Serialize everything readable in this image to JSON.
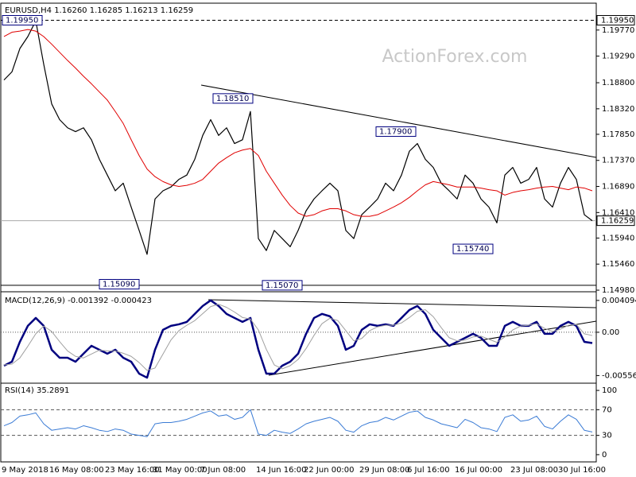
{
  "chart_data": [
    {
      "type": "line",
      "title": "EURUSD,H4 1.16260 1.16285 1.16213 1.16259",
      "watermark": "ActionForex.com",
      "categories": [
        "9 May 2018",
        null,
        null,
        null,
        null,
        null,
        "16 May 08:00",
        null,
        null,
        null,
        null,
        null,
        null,
        "23 May 16:00",
        null,
        null,
        null,
        null,
        null,
        "31 May 00:00",
        null,
        null,
        null,
        null,
        null,
        "7 Jun 08:00",
        null,
        null,
        null,
        null,
        null,
        null,
        "14 Jun 16:00",
        null,
        null,
        null,
        null,
        null,
        "22 Jun 00:00",
        null,
        null,
        null,
        null,
        null,
        null,
        "29 Jun 08:00",
        null,
        null,
        null,
        null,
        null,
        "6 Jul 16:00",
        null,
        null,
        null,
        null,
        null,
        "16 Jul 00:00",
        null,
        null,
        null,
        null,
        null,
        null,
        "23 Jul 08:00",
        null,
        null,
        null,
        null,
        null,
        "30 Jul 16:00",
        null,
        null,
        null,
        null
      ],
      "series": [
        {
          "color": "#000000",
          "width": 1.2,
          "values": [
            1.1885,
            1.19,
            1.1943,
            1.1965,
            1.1994,
            1.1914,
            1.1841,
            1.1812,
            1.1797,
            1.179,
            1.1797,
            1.1775,
            1.1739,
            1.171,
            1.1681,
            1.1695,
            1.1651,
            1.1608,
            1.1564,
            1.1666,
            1.1681,
            1.1688,
            1.1702,
            1.171,
            1.1739,
            1.1783,
            1.1812,
            1.1783,
            1.1797,
            1.1768,
            1.1775,
            1.1827,
            1.1593,
            1.1571,
            1.1608,
            1.1593,
            1.1578,
            1.1608,
            1.1644,
            1.1666,
            1.1681,
            1.1695,
            1.1681,
            1.1608,
            1.1593,
            1.1637,
            1.1651,
            1.1666,
            1.1695,
            1.1681,
            1.171,
            1.1754,
            1.1768,
            1.1739,
            1.1724,
            1.1695,
            1.1681,
            1.1666,
            1.171,
            1.1695,
            1.1666,
            1.1651,
            1.1622,
            1.171,
            1.1724,
            1.1695,
            1.1702,
            1.1724,
            1.1666,
            1.1651,
            1.1695,
            1.1724,
            1.1702,
            1.1637,
            1.16259
          ]
        },
        {
          "color": "#e00000",
          "width": 1,
          "values": [
            1.1965,
            1.1973,
            1.1975,
            1.1978,
            1.1975,
            1.1965,
            1.1951,
            1.1936,
            1.1921,
            1.1907,
            1.1892,
            1.1878,
            1.1863,
            1.1848,
            1.1827,
            1.1805,
            1.1775,
            1.1746,
            1.1721,
            1.1707,
            1.1698,
            1.1692,
            1.1689,
            1.1691,
            1.1695,
            1.1702,
            1.1717,
            1.1732,
            1.1742,
            1.1751,
            1.1756,
            1.1759,
            1.1746,
            1.1717,
            1.1695,
            1.1673,
            1.1654,
            1.164,
            1.1634,
            1.1637,
            1.1644,
            1.1648,
            1.1648,
            1.1644,
            1.1637,
            1.1634,
            1.1634,
            1.1637,
            1.1644,
            1.1651,
            1.1659,
            1.1669,
            1.1681,
            1.1692,
            1.1698,
            1.1695,
            1.1692,
            1.1688,
            1.1688,
            1.1688,
            1.1686,
            1.1683,
            1.1681,
            1.1673,
            1.1678,
            1.1681,
            1.1683,
            1.1686,
            1.1688,
            1.1689,
            1.1686,
            1.1683,
            1.1688,
            1.1686,
            1.1681
          ]
        }
      ],
      "ylim": [
        1.1498,
        1.2025
      ],
      "yticks": [
        {
          "value": 1.1977,
          "label": "1.19770"
        },
        {
          "value": 1.1929,
          "label": "1.19290"
        },
        {
          "value": 1.188,
          "label": "1.18800"
        },
        {
          "value": 1.1832,
          "label": "1.18320"
        },
        {
          "value": 1.1785,
          "label": "1.17850"
        },
        {
          "value": 1.1737,
          "label": "1.17370"
        },
        {
          "value": 1.1689,
          "label": "1.16890"
        },
        {
          "value": 1.1641,
          "label": "1.16410"
        },
        {
          "value": 1.1594,
          "label": "1.15940"
        },
        {
          "value": 1.1546,
          "label": "1.15460"
        },
        {
          "value": 1.1498,
          "label": "1.14980"
        }
      ],
      "levels": [
        {
          "value": 1.1995,
          "style": "dashed",
          "color": "#000000"
        },
        {
          "value": 1.1507,
          "style": "solid",
          "color": "#000000"
        },
        {
          "value": 1.16259,
          "style": "solid",
          "color": "#aaaaaa"
        }
      ],
      "price_labels": [
        {
          "value": 1.1995,
          "label": "1.19950"
        },
        {
          "value": 1.16259,
          "label": "1.16259"
        }
      ],
      "annotations": [
        {
          "value": 1.1995,
          "label": "1.19950"
        },
        {
          "value": 1.1851,
          "label": "1.18510"
        },
        {
          "value": 1.179,
          "label": "1.17900"
        },
        {
          "value": 1.1574,
          "label": "1.15740"
        },
        {
          "value": 1.1509,
          "label": "1.15090"
        },
        {
          "value": 1.1507,
          "label": "1.15070"
        }
      ]
    },
    {
      "type": "line",
      "title": "MACD(12,26,9) -0.001392 -0.000423",
      "series": [
        {
          "color": "#000080",
          "width": 2.5,
          "values": [
            -0.0043,
            -0.00379,
            -0.00123,
            0.00082,
            0.00184,
            0.00082,
            -0.00225,
            -0.00328,
            -0.00328,
            -0.00379,
            -0.00276,
            -0.00174,
            -0.00225,
            -0.00276,
            -0.00225,
            -0.00328,
            -0.00379,
            -0.00532,
            -0.00584,
            -0.00225,
            0.00031,
            0.00082,
            0.00102,
            0.00133,
            0.00236,
            0.00338,
            0.0041,
            0.00338,
            0.00236,
            0.00184,
            0.00133,
            0.00184,
            -0.00225,
            -0.00532,
            -0.00532,
            -0.0043,
            -0.00379,
            -0.00276,
            -0.0002,
            0.00184,
            0.00236,
            0.00205,
            0.00082,
            -0.00225,
            -0.00174,
            0.00031,
            0.00102,
            0.00082,
            0.00102,
            0.00082,
            0.00184,
            0.00287,
            0.00338,
            0.00236,
            0.00031,
            -0.00072,
            -0.00174,
            -0.00123,
            -0.00072,
            -0.0002,
            -0.00072,
            -0.00174,
            -0.00174,
            0.00082,
            0.00133,
            0.00082,
            0.00082,
            0.00133,
            -0.0002,
            -0.0002,
            0.00082,
            0.00133,
            0.00082,
            -0.00123,
            -0.001392
          ]
        },
        {
          "color": "#a0a0a0",
          "width": 1,
          "values": [
            -0.0042,
            -0.0041,
            -0.0033,
            -0.0018,
            -0.0002,
            0.0008,
            0.0001,
            -0.0012,
            -0.0024,
            -0.0031,
            -0.0033,
            -0.0028,
            -0.0023,
            -0.0024,
            -0.0024,
            -0.0027,
            -0.0031,
            -0.0039,
            -0.0049,
            -0.0046,
            -0.0028,
            -0.001,
            0.0002,
            0.0009,
            0.0015,
            0.0024,
            0.0033,
            0.0036,
            0.0032,
            0.0026,
            0.0019,
            0.0017,
            0.0003,
            -0.0022,
            -0.0042,
            -0.0047,
            -0.0043,
            -0.0035,
            -0.0021,
            -0.0004,
            0.0011,
            0.0018,
            0.0015,
            0.0002,
            -0.0011,
            -0.0008,
            0.0002,
            0.0007,
            0.0009,
            0.0009,
            0.0012,
            0.0019,
            0.0027,
            0.0029,
            0.002,
            0.0006,
            -0.0007,
            -0.0011,
            -0.001,
            -0.0006,
            -0.0005,
            -0.0009,
            -0.0013,
            -0.0006,
            0.0003,
            0.0008,
            0.0009,
            0.0011,
            0.0005,
            0.0001,
            0.0004,
            0.0009,
            0.001,
            -0.0002,
            -0.000423
          ]
        }
      ],
      "ylim": [
        -0.00655,
        0.0049
      ],
      "yticks": [
        0.004094,
        {
          "value": 0,
          "label": "0.00"
        },
        -0.005568
      ],
      "hlines": [
        0
      ],
      "hline_style": "dotted"
    },
    {
      "type": "line",
      "title": "RSI(14) 35.2891",
      "series": [
        {
          "color": "#3a7bd5",
          "width": 1,
          "values": [
            45,
            50,
            60,
            62,
            65,
            48,
            38,
            40,
            42,
            40,
            45,
            42,
            38,
            36,
            40,
            38,
            32,
            30,
            28,
            48,
            50,
            50,
            52,
            55,
            60,
            65,
            68,
            60,
            62,
            55,
            58,
            70,
            32,
            30,
            38,
            35,
            33,
            40,
            48,
            52,
            55,
            58,
            52,
            38,
            35,
            45,
            50,
            52,
            58,
            54,
            60,
            66,
            68,
            58,
            54,
            48,
            45,
            42,
            55,
            50,
            42,
            40,
            36,
            58,
            62,
            52,
            54,
            60,
            44,
            40,
            52,
            62,
            55,
            38,
            35.2891
          ]
        }
      ],
      "ylim": [
        -10,
        110
      ],
      "yticks": [
        100,
        70,
        30,
        0
      ],
      "hlines": [
        70,
        30
      ],
      "hline_style": "dashed"
    }
  ]
}
